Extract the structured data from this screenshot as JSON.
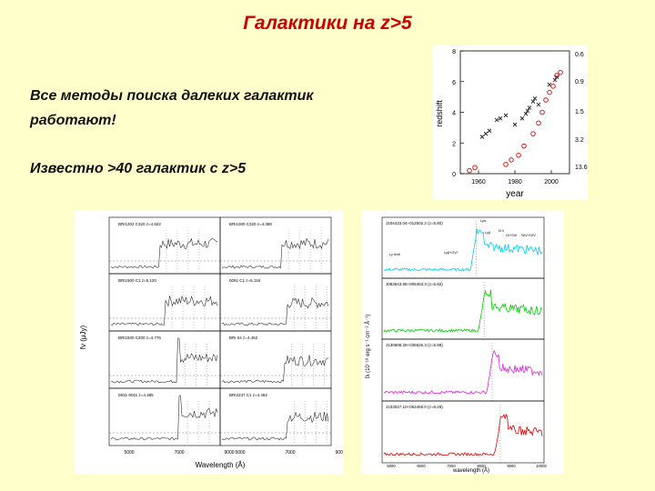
{
  "slide": {
    "title": "Галактики на z>5",
    "text1_line1": "Все методы поиска далеких галактик",
    "text1_line2": "работают!",
    "text2": "Известно >40 галактик с z>5"
  },
  "redshift_chart": {
    "xlabel": "year",
    "ylabel": "redshift",
    "xticks": [
      "1960",
      "1980",
      "2000"
    ],
    "yticks": [
      "0",
      "2",
      "4",
      "6",
      "8"
    ],
    "right_ticks": [
      "0.6",
      "0.9",
      "1.5",
      "3.2",
      "13.6"
    ]
  },
  "spectra_left": {
    "xlabel": "Wavelength (Å)",
    "ylabel": "fν (μJy)",
    "xticks": [
      "5000",
      "7000",
      "9000"
    ],
    "labels": [
      "BRI1202 C320 z=4.822",
      "BRI1000 C320 z=4.380",
      "BRI1500 C1 z=5.120",
      "0051 C1 z=5.116",
      "BRI1500 C200 z=4.776",
      "BRI 04 z=4.462",
      "0631-0011 z=4.385",
      "BRI2237 C1 z=4.492"
    ]
  },
  "spectra_right": {
    "xlabel": "wavelength (Å)",
    "ylabel": "fλ (10⁻¹⁸ erg s⁻¹ cm⁻² Å⁻¹)",
    "labels": [
      "J104433.04−012502.2 (z=5.80)",
      "J083643.85+005453.3 (z=5.82)",
      "J130608.26+035626.3 (z=5.99)",
      "J103027.10+052455.0 (z=6.28)"
    ],
    "annotations": [
      "Lyα",
      "Lyβ",
      "N V",
      "Ly limit",
      "Lyβ+OVI",
      "OI+SiII",
      "SiIV+OIV"
    ],
    "xticks": [
      "5000",
      "6000",
      "7000",
      "8000",
      "9000",
      "10000"
    ],
    "colors": [
      "#00CCEE",
      "#00CC00",
      "#DD22DD",
      "#DD0000"
    ]
  }
}
